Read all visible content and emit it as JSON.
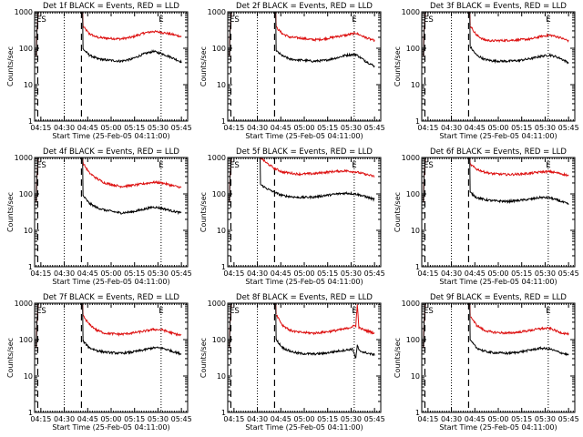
{
  "figure": {
    "start_time_label": "Start Time (25-Feb-05 04:11:00)",
    "ylabel": "Counts/sec",
    "x_ticks": [
      "04:15",
      "04:30",
      "04:45",
      "05:00",
      "05:15",
      "05:30",
      "05:45"
    ],
    "y_ticks": [
      "1",
      "10",
      "100",
      "1000"
    ],
    "marker_left": "ES",
    "marker_right": "E",
    "colors": {
      "events": "#000000",
      "lld": "#dd1111"
    }
  },
  "chart_data": [
    {
      "type": "line",
      "title": "Det 1f BLACK = Events, RED = LLD",
      "xlabel": "Start Time (25-Feb-05 04:11:00)",
      "ylabel": "Counts/sec",
      "x_unit": "minutes after 04:11",
      "xlim": [
        0,
        98
      ],
      "ylim": [
        1,
        1000
      ],
      "yscale": "log",
      "vlines_dotted": [
        19,
        81
      ],
      "vlines_dashed": [
        2,
        30
      ],
      "series": [
        {
          "name": "LLD",
          "color": "#dd1111",
          "points": [
            [
              31,
              400
            ],
            [
              35,
              250
            ],
            [
              40,
              200
            ],
            [
              45,
              190
            ],
            [
              55,
              180
            ],
            [
              62,
              200
            ],
            [
              70,
              260
            ],
            [
              76,
              290
            ],
            [
              82,
              270
            ],
            [
              88,
              240
            ],
            [
              94,
              210
            ]
          ]
        },
        {
          "name": "Events",
          "color": "#000000",
          "points": [
            [
              31,
              95
            ],
            [
              35,
              65
            ],
            [
              40,
              52
            ],
            [
              45,
              48
            ],
            [
              55,
              44
            ],
            [
              62,
              50
            ],
            [
              70,
              70
            ],
            [
              76,
              82
            ],
            [
              82,
              70
            ],
            [
              88,
              55
            ],
            [
              94,
              42
            ]
          ]
        }
      ]
    },
    {
      "type": "line",
      "title": "Det 2f BLACK = Events, RED = LLD",
      "xlabel": "Start Time (25-Feb-05 04:11:00)",
      "ylabel": "Counts/sec",
      "x_unit": "minutes after 04:11",
      "xlim": [
        0,
        98
      ],
      "ylim": [
        1,
        1000
      ],
      "yscale": "log",
      "vlines_dotted": [
        19,
        81
      ],
      "vlines_dashed": [
        2,
        30
      ],
      "series": [
        {
          "name": "LLD",
          "color": "#dd1111",
          "points": [
            [
              31,
              380
            ],
            [
              35,
              250
            ],
            [
              40,
              200
            ],
            [
              45,
              195
            ],
            [
              55,
              170
            ],
            [
              62,
              180
            ],
            [
              70,
              210
            ],
            [
              76,
              230
            ],
            [
              82,
              260
            ],
            [
              88,
              200
            ],
            [
              94,
              160
            ]
          ]
        },
        {
          "name": "Events",
          "color": "#000000",
          "points": [
            [
              31,
              85
            ],
            [
              35,
              62
            ],
            [
              40,
              50
            ],
            [
              45,
              48
            ],
            [
              55,
              44
            ],
            [
              62,
              46
            ],
            [
              70,
              55
            ],
            [
              76,
              65
            ],
            [
              82,
              68
            ],
            [
              88,
              45
            ],
            [
              94,
              32
            ]
          ]
        }
      ]
    },
    {
      "type": "line",
      "title": "Det 3f BLACK = Events, RED = LLD",
      "xlabel": "Start Time (25-Feb-05 04:11:00)",
      "ylabel": "Counts/sec",
      "x_unit": "minutes after 04:11",
      "xlim": [
        0,
        98
      ],
      "ylim": [
        1,
        1000
      ],
      "yscale": "log",
      "vlines_dotted": [
        19,
        81
      ],
      "vlines_dashed": [
        2,
        30
      ],
      "series": [
        {
          "name": "LLD",
          "color": "#dd1111",
          "points": [
            [
              31,
              420
            ],
            [
              35,
              230
            ],
            [
              40,
              170
            ],
            [
              45,
              160
            ],
            [
              55,
              165
            ],
            [
              62,
              170
            ],
            [
              70,
              180
            ],
            [
              76,
              210
            ],
            [
              82,
              230
            ],
            [
              88,
              200
            ],
            [
              94,
              160
            ]
          ]
        },
        {
          "name": "Events",
          "color": "#000000",
          "points": [
            [
              31,
              110
            ],
            [
              35,
              65
            ],
            [
              40,
              50
            ],
            [
              45,
              45
            ],
            [
              55,
              44
            ],
            [
              62,
              46
            ],
            [
              70,
              52
            ],
            [
              76,
              60
            ],
            [
              82,
              65
            ],
            [
              88,
              55
            ],
            [
              94,
              40
            ]
          ]
        }
      ]
    },
    {
      "type": "line",
      "title": "Det 4f BLACK = Events, RED = LLD",
      "xlabel": "Start Time (25-Feb-05 04:11:00)",
      "ylabel": "Counts/sec",
      "x_unit": "minutes after 04:11",
      "xlim": [
        0,
        98
      ],
      "ylim": [
        1,
        1000
      ],
      "yscale": "log",
      "vlines_dotted": [
        19,
        81
      ],
      "vlines_dashed": [
        2,
        30
      ],
      "series": [
        {
          "name": "LLD",
          "color": "#dd1111",
          "points": [
            [
              31,
              700
            ],
            [
              35,
              380
            ],
            [
              40,
              260
            ],
            [
              45,
              200
            ],
            [
              55,
              160
            ],
            [
              62,
              170
            ],
            [
              70,
              190
            ],
            [
              76,
              210
            ],
            [
              82,
              200
            ],
            [
              88,
              170
            ],
            [
              94,
              150
            ]
          ]
        },
        {
          "name": "Events",
          "color": "#000000",
          "points": [
            [
              31,
              90
            ],
            [
              35,
              55
            ],
            [
              40,
              42
            ],
            [
              45,
              36
            ],
            [
              55,
              30
            ],
            [
              62,
              32
            ],
            [
              70,
              38
            ],
            [
              76,
              44
            ],
            [
              82,
              40
            ],
            [
              88,
              34
            ],
            [
              94,
              30
            ]
          ]
        }
      ]
    },
    {
      "type": "line",
      "title": "Det 5f BLACK = Events, RED = LLD",
      "xlabel": "Start Time (25-Feb-05 04:11:00)",
      "ylabel": "Counts/sec",
      "x_unit": "minutes after 04:11",
      "xlim": [
        0,
        98
      ],
      "ylim": [
        1,
        1000
      ],
      "yscale": "log",
      "vlines_dotted": [
        19,
        81
      ],
      "vlines_dashed": [
        2,
        30
      ],
      "series": [
        {
          "name": "LLD",
          "color": "#dd1111",
          "points": [
            [
              21,
              1000
            ],
            [
              25,
              700
            ],
            [
              30,
              500
            ],
            [
              35,
              400
            ],
            [
              45,
              350
            ],
            [
              55,
              360
            ],
            [
              62,
              390
            ],
            [
              70,
              420
            ],
            [
              76,
              430
            ],
            [
              82,
              400
            ],
            [
              88,
              350
            ],
            [
              94,
              300
            ]
          ]
        },
        {
          "name": "Events",
          "color": "#000000",
          "points": [
            [
              21,
              180
            ],
            [
              25,
              140
            ],
            [
              30,
              110
            ],
            [
              35,
              90
            ],
            [
              45,
              80
            ],
            [
              55,
              82
            ],
            [
              62,
              90
            ],
            [
              70,
              100
            ],
            [
              76,
              105
            ],
            [
              82,
              100
            ],
            [
              88,
              85
            ],
            [
              94,
              70
            ]
          ]
        }
      ]
    },
    {
      "type": "line",
      "title": "Det 6f BLACK = Events, RED = LLD",
      "xlabel": "Start Time (25-Feb-05 04:11:00)",
      "ylabel": "Counts/sec",
      "x_unit": "minutes after 04:11",
      "xlim": [
        0,
        98
      ],
      "ylim": [
        1,
        1000
      ],
      "yscale": "log",
      "vlines_dotted": [
        19,
        81
      ],
      "vlines_dashed": [
        2,
        30
      ],
      "series": [
        {
          "name": "LLD",
          "color": "#dd1111",
          "points": [
            [
              31,
              650
            ],
            [
              35,
              480
            ],
            [
              40,
              400
            ],
            [
              45,
              360
            ],
            [
              55,
              340
            ],
            [
              62,
              350
            ],
            [
              70,
              370
            ],
            [
              76,
              400
            ],
            [
              82,
              410
            ],
            [
              88,
              370
            ],
            [
              94,
              320
            ]
          ]
        },
        {
          "name": "Events",
          "color": "#000000",
          "points": [
            [
              31,
              110
            ],
            [
              35,
              80
            ],
            [
              40,
              70
            ],
            [
              45,
              65
            ],
            [
              55,
              62
            ],
            [
              62,
              66
            ],
            [
              70,
              72
            ],
            [
              76,
              80
            ],
            [
              82,
              78
            ],
            [
              88,
              65
            ],
            [
              94,
              52
            ]
          ]
        }
      ]
    },
    {
      "type": "line",
      "title": "Det 7f BLACK = Events, RED = LLD",
      "xlabel": "Start Time (25-Feb-05 04:11:00)",
      "ylabel": "Counts/sec",
      "x_unit": "minutes after 04:11",
      "xlim": [
        0,
        98
      ],
      "ylim": [
        1,
        1000
      ],
      "yscale": "log",
      "vlines_dotted": [
        19,
        81
      ],
      "vlines_dashed": [
        2,
        30
      ],
      "series": [
        {
          "name": "LLD",
          "color": "#dd1111",
          "points": [
            [
              31,
              450
            ],
            [
              35,
              260
            ],
            [
              40,
              180
            ],
            [
              45,
              150
            ],
            [
              55,
              140
            ],
            [
              62,
              150
            ],
            [
              70,
              170
            ],
            [
              76,
              190
            ],
            [
              82,
              185
            ],
            [
              88,
              150
            ],
            [
              94,
              130
            ]
          ]
        },
        {
          "name": "Events",
          "color": "#000000",
          "points": [
            [
              31,
              90
            ],
            [
              35,
              60
            ],
            [
              40,
              50
            ],
            [
              45,
              45
            ],
            [
              55,
              42
            ],
            [
              62,
              45
            ],
            [
              70,
              52
            ],
            [
              76,
              60
            ],
            [
              82,
              58
            ],
            [
              88,
              48
            ],
            [
              94,
              40
            ]
          ]
        }
      ]
    },
    {
      "type": "line",
      "title": "Det 8f BLACK = Events, RED = LLD",
      "xlabel": "Start Time (25-Feb-05 04:11:00)",
      "ylabel": "Counts/sec",
      "x_unit": "minutes after 04:11",
      "xlim": [
        0,
        98
      ],
      "ylim": [
        1,
        1000
      ],
      "yscale": "log",
      "vlines_dotted": [
        19,
        81
      ],
      "vlines_dashed": [
        2,
        30
      ],
      "series": [
        {
          "name": "LLD",
          "color": "#dd1111",
          "points": [
            [
              31,
              500
            ],
            [
              35,
              250
            ],
            [
              40,
              180
            ],
            [
              45,
              160
            ],
            [
              55,
              150
            ],
            [
              62,
              160
            ],
            [
              70,
              180
            ],
            [
              76,
              200
            ],
            [
              80,
              230
            ],
            [
              82,
              240
            ],
            [
              83,
              900
            ],
            [
              84,
              210
            ],
            [
              88,
              180
            ],
            [
              94,
              150
            ]
          ]
        },
        {
          "name": "Events",
          "color": "#000000",
          "points": [
            [
              31,
              100
            ],
            [
              35,
              60
            ],
            [
              40,
              48
            ],
            [
              45,
              42
            ],
            [
              55,
              40
            ],
            [
              62,
              42
            ],
            [
              70,
              48
            ],
            [
              76,
              52
            ],
            [
              80,
              55
            ],
            [
              82,
              30
            ],
            [
              83,
              70
            ],
            [
              84,
              50
            ],
            [
              88,
              44
            ],
            [
              94,
              38
            ]
          ]
        }
      ]
    },
    {
      "type": "line",
      "title": "Det 9f BLACK = Events, RED = LLD",
      "xlabel": "Start Time (25-Feb-05 04:11:00)",
      "ylabel": "Counts/sec",
      "x_unit": "minutes after 04:11",
      "xlim": [
        0,
        98
      ],
      "ylim": [
        1,
        1000
      ],
      "yscale": "log",
      "vlines_dotted": [
        19,
        81
      ],
      "vlines_dashed": [
        2,
        30
      ],
      "series": [
        {
          "name": "LLD",
          "color": "#dd1111",
          "points": [
            [
              31,
              450
            ],
            [
              35,
              250
            ],
            [
              40,
              180
            ],
            [
              45,
              160
            ],
            [
              55,
              150
            ],
            [
              62,
              160
            ],
            [
              70,
              180
            ],
            [
              76,
              200
            ],
            [
              82,
              205
            ],
            [
              88,
              160
            ],
            [
              94,
              140
            ]
          ]
        },
        {
          "name": "Events",
          "color": "#000000",
          "points": [
            [
              31,
              95
            ],
            [
              35,
              60
            ],
            [
              40,
              48
            ],
            [
              45,
              44
            ],
            [
              55,
              42
            ],
            [
              62,
              45
            ],
            [
              70,
              52
            ],
            [
              76,
              58
            ],
            [
              82,
              55
            ],
            [
              88,
              45
            ],
            [
              94,
              38
            ]
          ]
        }
      ]
    }
  ]
}
